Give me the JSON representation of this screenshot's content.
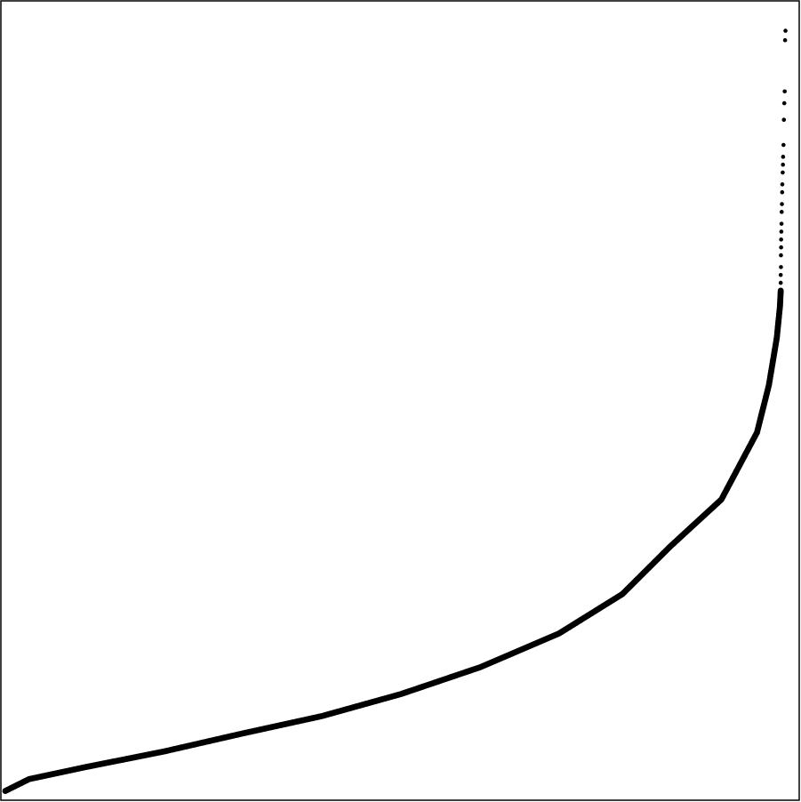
{
  "chart_data": {
    "type": "scatter",
    "title": "",
    "xlabel": "",
    "ylabel": "",
    "xlim": [
      0,
      1
    ],
    "ylim": [
      0,
      1
    ],
    "grid": false,
    "legend": "none",
    "point_color": "#000000",
    "background_color": "#ffffff",
    "frame_color": "#000000",
    "series": [
      {
        "curve_keypoints": [
          {
            "x": 0.0,
            "y": 0.005
          },
          {
            "x": 0.03,
            "y": 0.02
          },
          {
            "x": 0.1,
            "y": 0.035
          },
          {
            "x": 0.2,
            "y": 0.055
          },
          {
            "x": 0.3,
            "y": 0.078
          },
          {
            "x": 0.4,
            "y": 0.1
          },
          {
            "x": 0.5,
            "y": 0.128
          },
          {
            "x": 0.6,
            "y": 0.162
          },
          {
            "x": 0.7,
            "y": 0.205
          },
          {
            "x": 0.78,
            "y": 0.255
          },
          {
            "x": 0.84,
            "y": 0.315
          },
          {
            "x": 0.905,
            "y": 0.375
          },
          {
            "x": 0.95,
            "y": 0.46
          },
          {
            "x": 0.965,
            "y": 0.52
          },
          {
            "x": 0.975,
            "y": 0.58
          },
          {
            "x": 0.979,
            "y": 0.62
          },
          {
            "x": 0.98,
            "y": 0.64
          }
        ],
        "sparse_tail_points": [
          {
            "x": 0.98,
            "y": 0.65
          },
          {
            "x": 0.98,
            "y": 0.66
          },
          {
            "x": 0.9803,
            "y": 0.67
          },
          {
            "x": 0.9803,
            "y": 0.685
          },
          {
            "x": 0.9805,
            "y": 0.695
          },
          {
            "x": 0.9805,
            "y": 0.705
          },
          {
            "x": 0.9808,
            "y": 0.715
          },
          {
            "x": 0.981,
            "y": 0.725
          },
          {
            "x": 0.9812,
            "y": 0.74
          },
          {
            "x": 0.9815,
            "y": 0.75
          },
          {
            "x": 0.9818,
            "y": 0.765
          },
          {
            "x": 0.982,
            "y": 0.775
          },
          {
            "x": 0.9825,
            "y": 0.79
          },
          {
            "x": 0.9828,
            "y": 0.8
          },
          {
            "x": 0.983,
            "y": 0.81
          },
          {
            "x": 0.9835,
            "y": 0.825
          },
          {
            "x": 0.984,
            "y": 0.857
          },
          {
            "x": 0.9845,
            "y": 0.878
          },
          {
            "x": 0.985,
            "y": 0.893
          },
          {
            "x": 0.9855,
            "y": 0.958
          },
          {
            "x": 0.986,
            "y": 0.97
          }
        ]
      }
    ]
  }
}
